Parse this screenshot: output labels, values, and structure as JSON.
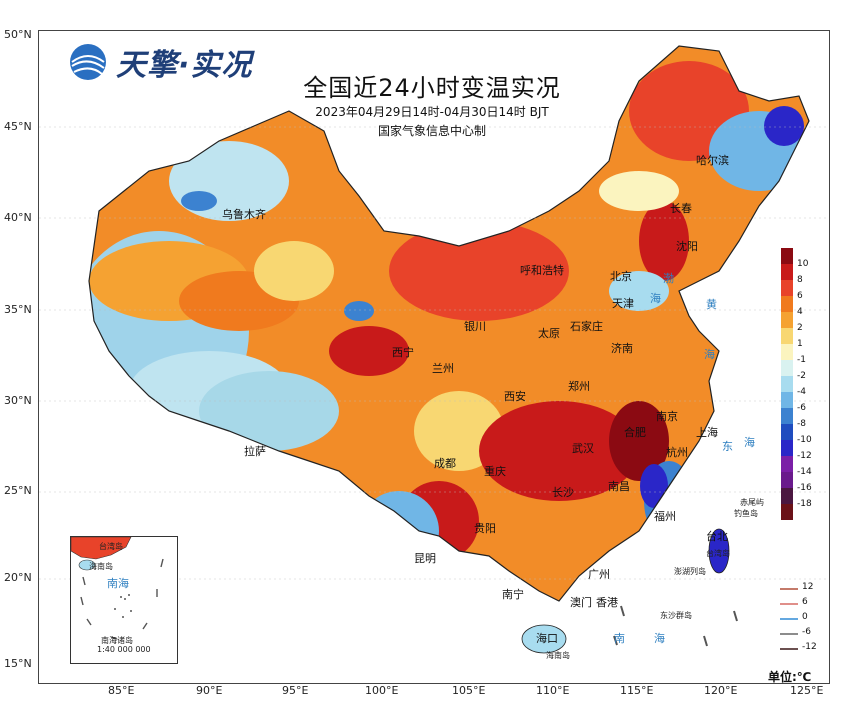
{
  "brand": {
    "logo_text": "天擎·实况"
  },
  "map": {
    "title": "全国近24小时变温实况",
    "subtitle": "2023年04月29日14时-04月30日14时 BJT",
    "producer": "国家气象信息中心制",
    "lat_ticks": [
      "50°N",
      "45°N",
      "40°N",
      "35°N",
      "30°N",
      "25°N",
      "20°N",
      "15°N"
    ],
    "lon_ticks": [
      "85°E",
      "90°E",
      "95°E",
      "100°E",
      "105°E",
      "110°E",
      "115°E",
      "120°E",
      "125°E"
    ],
    "colorbar": {
      "labels": [
        "10",
        "8",
        "6",
        "4",
        "2",
        "1",
        "-1",
        "-2",
        "-4",
        "-6",
        "-8",
        "-10",
        "-12",
        "-14",
        "-16",
        "-18"
      ],
      "colors": [
        "#8b0a12",
        "#c81a1a",
        "#e8432a",
        "#f07a1e",
        "#f5a232",
        "#f8d772",
        "#fbf4bf",
        "#d9f2f0",
        "#a8dcef",
        "#70b6e6",
        "#3c82d0",
        "#1f4dbf",
        "#2a26c8",
        "#7b1fa7",
        "#6a1a8c",
        "#4b1740",
        "#6b1218"
      ]
    },
    "cities": [
      "乌鲁木齐",
      "哈尔滨",
      "长春",
      "沈阳",
      "呼和浩特",
      "北京",
      "天津",
      "银川",
      "石家庄",
      "太原",
      "济南",
      "西宁",
      "兰州",
      "郑州",
      "西安",
      "南京",
      "合肥",
      "上海",
      "杭州",
      "拉萨",
      "成都",
      "武汉",
      "重庆",
      "长沙",
      "南昌",
      "福州",
      "台北",
      "贵阳",
      "昆明",
      "南宁",
      "广州",
      "澳门",
      "香港",
      "海口"
    ],
    "seas": [
      "渤",
      "海",
      "黄",
      "海",
      "东",
      "海",
      "南",
      "海"
    ],
    "islands": [
      "赤尾屿",
      "钓鱼岛",
      "台湾岛",
      "澎湖列岛",
      "东沙群岛",
      "海南岛"
    ],
    "inset": {
      "label_sea": "南海",
      "label_island": "海南岛",
      "label_nh": "南海诸岛",
      "label_tw": "台湾岛",
      "scale": "1:40 000 000"
    },
    "line_legend": [
      "12",
      "6",
      "0",
      "-6",
      "-12"
    ],
    "line_legend_colors": [
      "#c47a6a",
      "#e08f8a",
      "#64a8e0",
      "#8c8c8c",
      "#6b5050"
    ],
    "unit": "单位:℃"
  }
}
